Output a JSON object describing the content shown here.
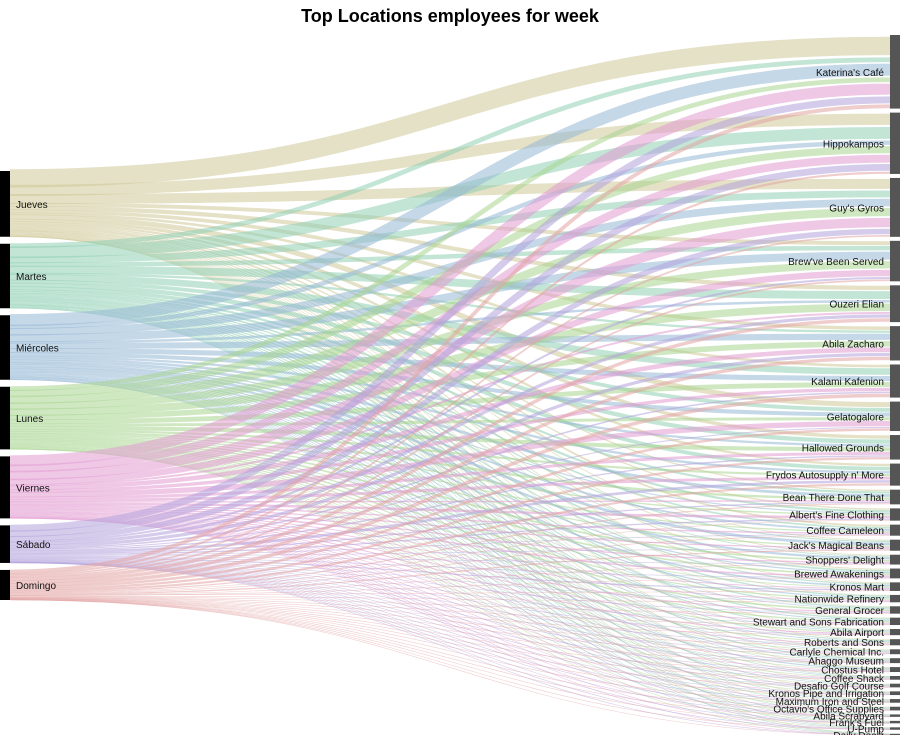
{
  "chart_data": {
    "type": "sankey",
    "title": "Top Locations employees for week",
    "sources": [
      {
        "name": "Jueves",
        "color": "#cfc898"
      },
      {
        "name": "Martes",
        "color": "#8fd0b5"
      },
      {
        "name": "Miércoles",
        "color": "#96b8d6"
      },
      {
        "name": "Lunes",
        "color": "#a8d68f"
      },
      {
        "name": "Viernes",
        "color": "#e19ad2"
      },
      {
        "name": "Sábado",
        "color": "#b2a3dc"
      },
      {
        "name": "Domingo",
        "color": "#e3a4a4"
      }
    ],
    "targets": [
      {
        "name": "Katerina's Café",
        "total": 60
      },
      {
        "name": "Hippokampos",
        "total": 50
      },
      {
        "name": "Guy's Gyros",
        "total": 48
      },
      {
        "name": "Brew've Been Served",
        "total": 33
      },
      {
        "name": "Ouzeri Elian",
        "total": 30
      },
      {
        "name": "Abila Zacharo",
        "total": 28
      },
      {
        "name": "Kalami Kafenion",
        "total": 27
      },
      {
        "name": "Gelatogalore",
        "total": 24
      },
      {
        "name": "Hallowed Grounds",
        "total": 20
      },
      {
        "name": "Frydos Autosupply n' More",
        "total": 18
      },
      {
        "name": "Bean There Done That",
        "total": 12
      },
      {
        "name": "Albert's Fine Clothing",
        "total": 10
      },
      {
        "name": "Coffee Cameleon",
        "total": 9
      },
      {
        "name": "Jack's Magical Beans",
        "total": 9
      },
      {
        "name": "Shoppers' Delight",
        "total": 8
      },
      {
        "name": "Brewed Awakenings",
        "total": 8
      },
      {
        "name": "Kronos Mart",
        "total": 7
      },
      {
        "name": "Nationwide Refinery",
        "total": 6
      },
      {
        "name": "General Grocer",
        "total": 6
      },
      {
        "name": "Stewart and Sons Fabrication",
        "total": 6
      },
      {
        "name": "Abila Airport",
        "total": 5
      },
      {
        "name": "Roberts and Sons",
        "total": 5
      },
      {
        "name": "Carlyle Chemical Inc.",
        "total": 4
      },
      {
        "name": "Ahaggo Museum",
        "total": 4
      },
      {
        "name": "Chostus Hotel",
        "total": 4
      },
      {
        "name": "Coffee Shack",
        "total": 3
      },
      {
        "name": "Desafio Golf Course",
        "total": 3
      },
      {
        "name": "Kronos Pipe and Irrigation",
        "total": 3
      },
      {
        "name": "Maximum Iron and Steel",
        "total": 3
      },
      {
        "name": "Octavio's Office Supplies",
        "total": 3
      },
      {
        "name": "Abila Scrapyard",
        "total": 2
      },
      {
        "name": "Frank's Fuel",
        "total": 2
      },
      {
        "name": "U-Pump",
        "total": 2
      },
      {
        "name": "Daily Dealz",
        "total": 1
      }
    ],
    "source_totals": [
      105,
      103,
      103,
      100,
      99,
      60,
      48
    ]
  }
}
